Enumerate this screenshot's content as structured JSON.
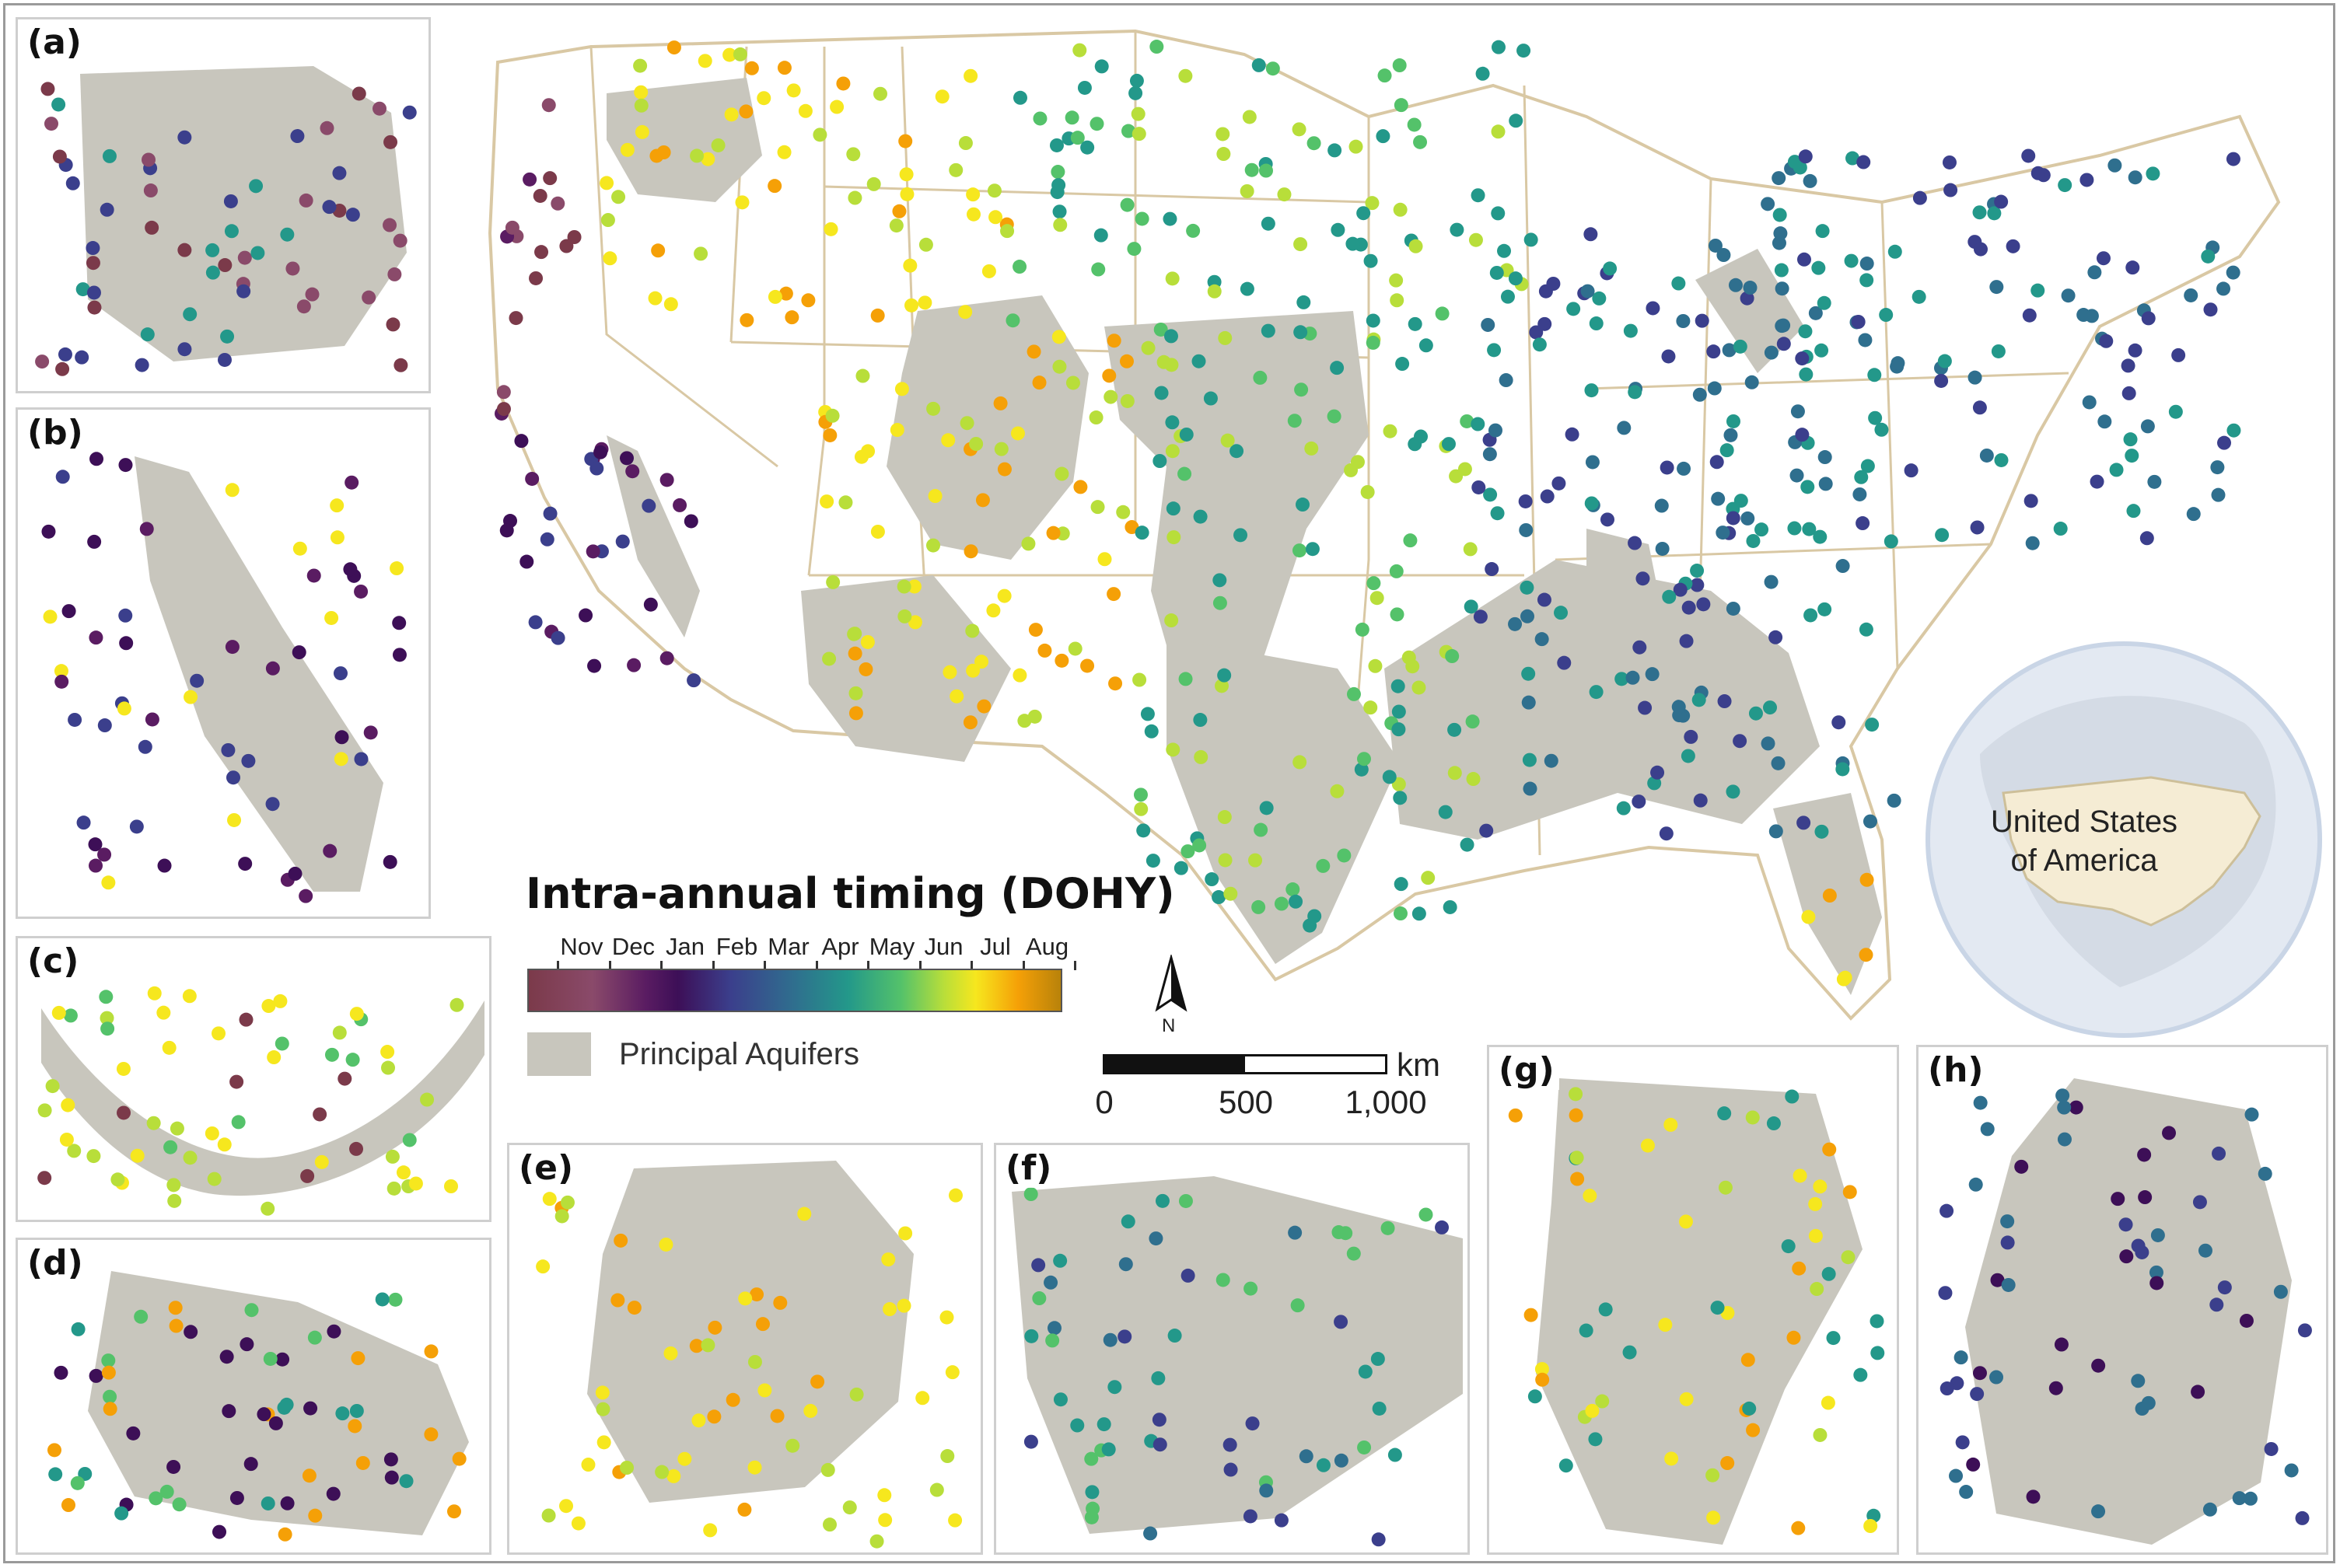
{
  "legend": {
    "title": "Intra-annual timing (DOHY)",
    "months": [
      "Nov",
      "Dec",
      "Jan",
      "Feb",
      "Mar",
      "Apr",
      "May",
      "Jun",
      "Jul",
      "Aug"
    ],
    "aquifer_label": "Principal Aquifers",
    "colors": [
      "#7b3a4a",
      "#8a4a6a",
      "#5a1c62",
      "#3d0f57",
      "#3b3f8c",
      "#2f6f8e",
      "#23988a",
      "#54c26a",
      "#b8de3a",
      "#f6e71e",
      "#f5a007",
      "#b8820a"
    ]
  },
  "map": {
    "north_label": "N",
    "scale_ticks": [
      "0",
      "500",
      "1,000"
    ],
    "scale_unit": "km",
    "globe_label_line1": "United States",
    "globe_label_line2": "of America",
    "aquifer_color": "#c8c6bd",
    "state_border_color": "#d9c8a4"
  },
  "panels": {
    "a": "(a)",
    "b": "(b)",
    "c": "(c)",
    "d": "(d)",
    "e": "(e)",
    "f": "(f)",
    "g": "(g)",
    "h": "(h)"
  }
}
